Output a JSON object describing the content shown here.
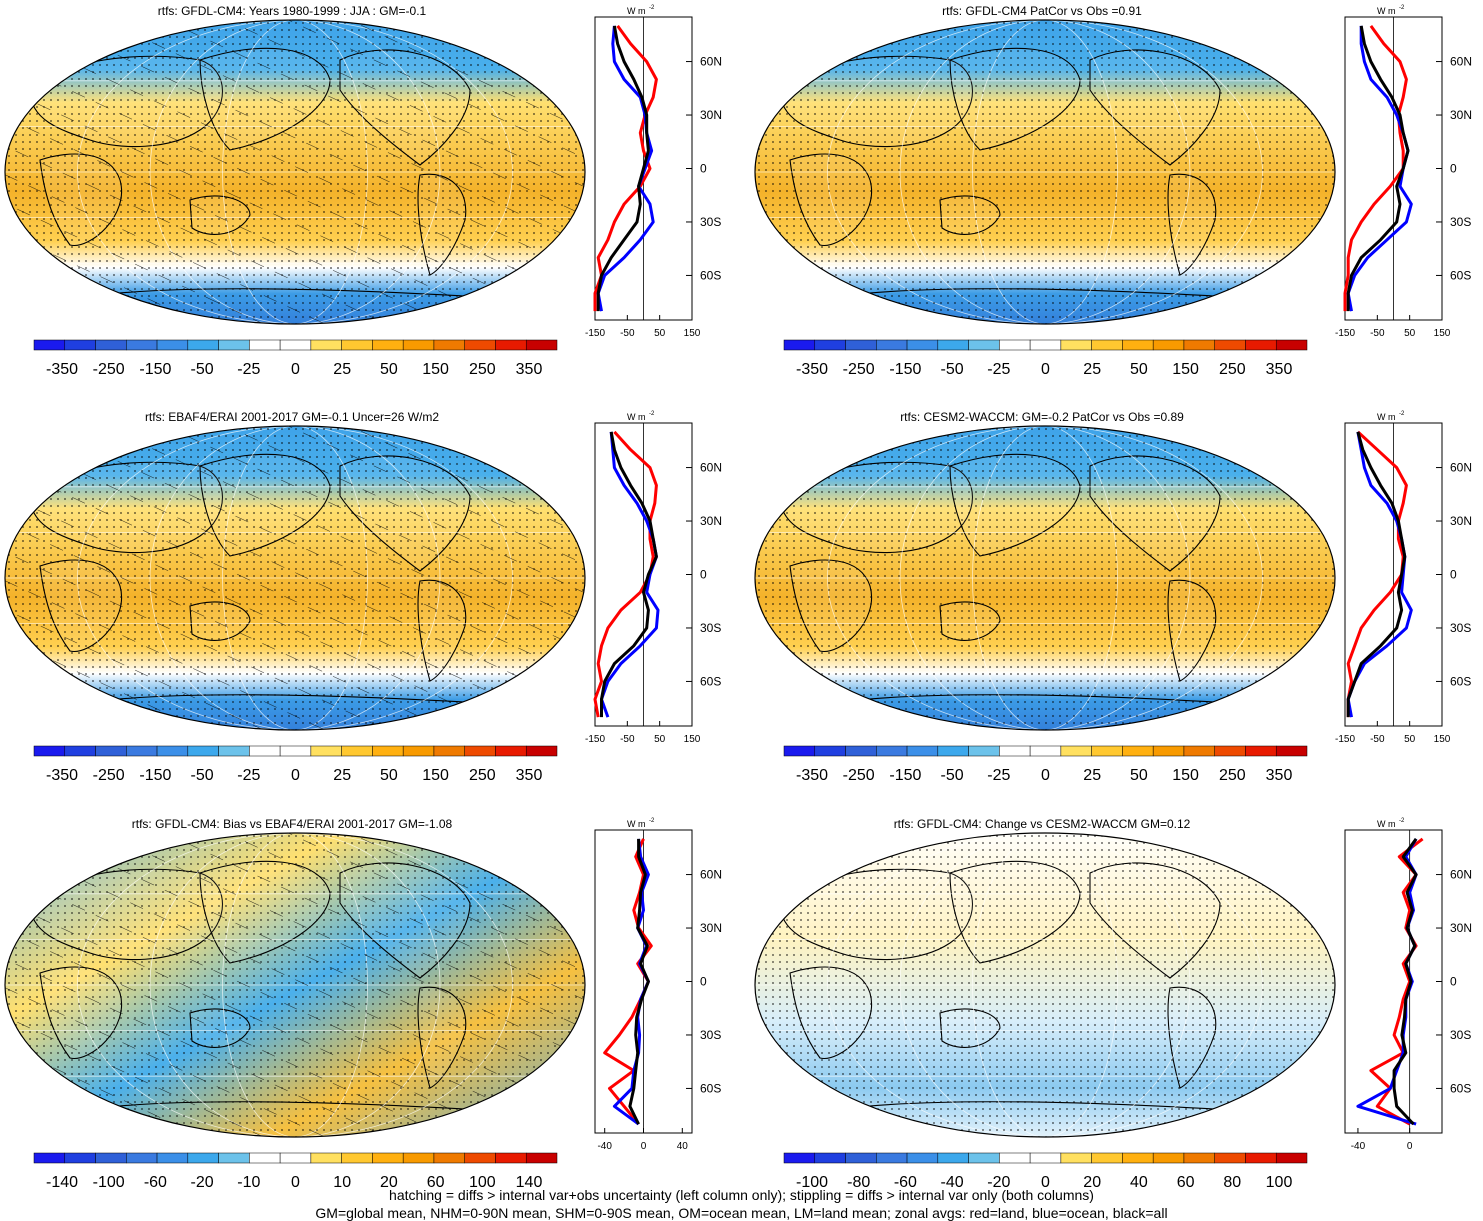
{
  "figure": {
    "footer_lines": [
      "hatching = diffs > internal var+obs uncertainty (left column only); stippling = diffs > internal var only (both columns)",
      "GM=global mean, NHM=0-90N mean, SHM=0-90S mean, OM=ocean mean, LM=land mean; zonal avgs: red=land, blue=ocean, black=all"
    ],
    "colors": {
      "land": "#ff0000",
      "ocean": "#0000ff",
      "all": "#000000",
      "palette": [
        "#1a1aee",
        "#1f3fe0",
        "#2f60d8",
        "#3a7ae0",
        "#3b8fe8",
        "#3ca8ec",
        "#6cc2ea",
        "#ffffff",
        "#ffffff",
        "#ffe060",
        "#ffc830",
        "#ffb010",
        "#f89a00",
        "#ef7a00",
        "#ee4a00",
        "#e81a00",
        "#c80000"
      ]
    }
  },
  "panels": [
    {
      "title": "rtfs: GFDL-CM4: Years 1980-1999 : JJA : GM=-0.1",
      "colorbar_labels": [
        "-350",
        "-250",
        "-150",
        "-50",
        "-25",
        "0",
        "25",
        "50",
        "150",
        "250",
        "350"
      ],
      "zonal": {
        "units": "W m",
        "superscript": "-2",
        "x_ticks": [
          "-150",
          "-50",
          "50",
          "150"
        ],
        "lat_labels": [
          "60N",
          "30N",
          "0",
          "30S",
          "60S"
        ]
      }
    },
    {
      "title": "rtfs: GFDL-CM4 PatCor vs Obs =0.91",
      "colorbar_labels": [
        "-350",
        "-250",
        "-150",
        "-50",
        "-25",
        "0",
        "25",
        "50",
        "150",
        "250",
        "350"
      ],
      "zonal": {
        "units": "W m",
        "superscript": "-2",
        "x_ticks": [
          "-150",
          "-50",
          "50",
          "150"
        ],
        "lat_labels": [
          "60N",
          "30N",
          "0",
          "30S",
          "60S"
        ]
      }
    },
    {
      "title": "rtfs: EBAF4/ERAI 2001-2017 GM=-0.1 Uncer=26 W/m2",
      "colorbar_labels": [
        "-350",
        "-250",
        "-150",
        "-50",
        "-25",
        "0",
        "25",
        "50",
        "150",
        "250",
        "350"
      ],
      "zonal": {
        "units": "W m",
        "superscript": "-2",
        "x_ticks": [
          "-150",
          "-50",
          "50",
          "150"
        ],
        "lat_labels": [
          "60N",
          "30N",
          "0",
          "30S",
          "60S"
        ]
      }
    },
    {
      "title": "rtfs: CESM2-WACCM: GM=-0.2 PatCor vs Obs =0.89",
      "colorbar_labels": [
        "-350",
        "-250",
        "-150",
        "-50",
        "-25",
        "0",
        "25",
        "50",
        "150",
        "250",
        "350"
      ],
      "zonal": {
        "units": "W m",
        "superscript": "-2",
        "x_ticks": [
          "-150",
          "-50",
          "50",
          "150"
        ],
        "lat_labels": [
          "60N",
          "30N",
          "0",
          "30S",
          "60S"
        ]
      }
    },
    {
      "title": "rtfs: GFDL-CM4: Bias vs EBAF4/ERAI 2001-2017 GM=-1.08",
      "colorbar_labels": [
        "-140",
        "-100",
        "-60",
        "-20",
        "-10",
        "0",
        "10",
        "20",
        "60",
        "100",
        "140"
      ],
      "zonal": {
        "units": "W m",
        "superscript": "-2",
        "x_ticks": [
          "-40",
          "0",
          "40"
        ],
        "lat_labels": [
          "60N",
          "30N",
          "0",
          "30S",
          "60S"
        ]
      }
    },
    {
      "title": "rtfs: GFDL-CM4: Change vs CESM2-WACCM GM=0.12",
      "colorbar_labels": [
        "-100",
        "-80",
        "-60",
        "-40",
        "-20",
        "0",
        "20",
        "40",
        "60",
        "80",
        "100"
      ],
      "zonal": {
        "units": "W m",
        "superscript": "-2",
        "x_ticks": [
          "-40",
          "0"
        ],
        "lat_labels": [
          "60N",
          "30N",
          "0",
          "30S",
          "60S"
        ]
      }
    }
  ],
  "chart_data": [
    {
      "type": "line",
      "title": "rtfs: GFDL-CM4: Years 1980-1999 : JJA : GM=-0.1",
      "xlabel": "W m-2",
      "xlim": [
        -150,
        150
      ],
      "y": [
        80,
        70,
        60,
        50,
        40,
        30,
        20,
        10,
        0,
        -10,
        -20,
        -30,
        -40,
        -50,
        -60,
        -70,
        -80
      ],
      "series": [
        {
          "name": "land",
          "values": [
            -80,
            -40,
            10,
            40,
            30,
            5,
            -10,
            0,
            20,
            -10,
            -60,
            -90,
            -110,
            -140,
            -130,
            -150,
            -150
          ]
        },
        {
          "name": "ocean",
          "values": [
            -90,
            -95,
            -90,
            -60,
            -10,
            5,
            10,
            25,
            5,
            -15,
            20,
            30,
            -10,
            -60,
            -120,
            -140,
            -130
          ]
        },
        {
          "name": "all",
          "values": [
            -90,
            -80,
            -60,
            -30,
            -5,
            10,
            10,
            15,
            0,
            -15,
            -10,
            -20,
            -60,
            -100,
            -130,
            -140,
            -140
          ]
        }
      ]
    },
    {
      "type": "line",
      "title": "rtfs: GFDL-CM4 PatCor vs Obs =0.91",
      "xlabel": "W m-2",
      "xlim": [
        -150,
        150
      ],
      "y": [
        80,
        70,
        60,
        50,
        40,
        30,
        20,
        10,
        0,
        -10,
        -20,
        -30,
        -40,
        -50,
        -60,
        -70,
        -80
      ],
      "series": [
        {
          "name": "land",
          "values": [
            -70,
            -30,
            20,
            40,
            30,
            15,
            20,
            30,
            30,
            -10,
            -60,
            -100,
            -130,
            -140,
            -140,
            -150,
            -150
          ]
        },
        {
          "name": "ocean",
          "values": [
            -100,
            -100,
            -90,
            -70,
            -20,
            10,
            30,
            45,
            30,
            20,
            55,
            40,
            -20,
            -80,
            -120,
            -140,
            -130
          ]
        },
        {
          "name": "all",
          "values": [
            -100,
            -90,
            -70,
            -40,
            -5,
            20,
            30,
            45,
            30,
            10,
            20,
            10,
            -40,
            -100,
            -130,
            -140,
            -140
          ]
        }
      ]
    },
    {
      "type": "line",
      "title": "rtfs: EBAF4/ERAI 2001-2017 GM=-0.1 Uncer=26 W/m2",
      "xlabel": "W m-2",
      "xlim": [
        -150,
        150
      ],
      "y": [
        80,
        70,
        60,
        50,
        40,
        30,
        20,
        10,
        0,
        -10,
        -20,
        -30,
        -40,
        -50,
        -60,
        -70,
        -80
      ],
      "series": [
        {
          "name": "land",
          "values": [
            -90,
            -40,
            20,
            40,
            35,
            20,
            20,
            30,
            20,
            -10,
            -70,
            -110,
            -130,
            -140,
            -130,
            -150,
            -140
          ]
        },
        {
          "name": "ocean",
          "values": [
            -100,
            -95,
            -90,
            -60,
            -20,
            10,
            30,
            40,
            20,
            10,
            45,
            40,
            -10,
            -70,
            -110,
            -130,
            -110
          ]
        },
        {
          "name": "all",
          "values": [
            -100,
            -90,
            -70,
            -40,
            -5,
            20,
            30,
            40,
            15,
            0,
            15,
            10,
            -30,
            -90,
            -120,
            -130,
            -130
          ]
        }
      ]
    },
    {
      "type": "line",
      "title": "rtfs: CESM2-WACCM: GM=-0.2 PatCor vs Obs =0.89",
      "xlabel": "W m-2",
      "xlim": [
        -150,
        150
      ],
      "y": [
        80,
        70,
        60,
        50,
        40,
        30,
        20,
        10,
        0,
        -10,
        -20,
        -30,
        -40,
        -50,
        -60,
        -70,
        -80
      ],
      "series": [
        {
          "name": "land",
          "values": [
            -110,
            -50,
            10,
            40,
            30,
            15,
            15,
            30,
            25,
            -10,
            -60,
            -100,
            -120,
            -140,
            -130,
            -140,
            -140
          ]
        },
        {
          "name": "ocean",
          "values": [
            -110,
            -100,
            -90,
            -70,
            -20,
            10,
            25,
            35,
            30,
            25,
            55,
            40,
            -20,
            -90,
            -120,
            -140,
            -130
          ]
        },
        {
          "name": "all",
          "values": [
            -110,
            -95,
            -70,
            -40,
            -5,
            15,
            25,
            35,
            25,
            15,
            25,
            10,
            -40,
            -100,
            -120,
            -140,
            -140
          ]
        }
      ]
    },
    {
      "type": "line",
      "title": "rtfs: GFDL-CM4: Bias vs EBAF4/ERAI 2001-2017 GM=-1.08",
      "xlabel": "W m-2",
      "xlim": [
        -50,
        50
      ],
      "y": [
        80,
        70,
        60,
        50,
        40,
        30,
        20,
        10,
        0,
        -10,
        -20,
        -30,
        -40,
        -50,
        -60,
        -70,
        -80
      ],
      "series": [
        {
          "name": "land",
          "values": [
            0,
            -8,
            0,
            -4,
            -10,
            -5,
            8,
            -6,
            5,
            -3,
            -12,
            -25,
            -40,
            -10,
            -35,
            -20,
            -5
          ]
        },
        {
          "name": "ocean",
          "values": [
            -5,
            -3,
            5,
            -2,
            0,
            -6,
            3,
            -4,
            5,
            -3,
            -6,
            -4,
            -5,
            -10,
            -12,
            -30,
            -5
          ]
        },
        {
          "name": "all",
          "values": [
            -5,
            -5,
            2,
            -3,
            -4,
            -6,
            4,
            -3,
            5,
            -2,
            -7,
            -8,
            -6,
            -8,
            -10,
            -14,
            -5
          ]
        }
      ]
    },
    {
      "type": "line",
      "title": "rtfs: GFDL-CM4: Change vs CESM2-WACCM GM=0.12",
      "xlabel": "W m-2",
      "xlim": [
        -50,
        25
      ],
      "y": [
        80,
        70,
        60,
        50,
        40,
        30,
        20,
        10,
        0,
        -10,
        -20,
        -30,
        -40,
        -50,
        -60,
        -70,
        -80
      ],
      "series": [
        {
          "name": "land",
          "values": [
            10,
            -8,
            5,
            -5,
            0,
            -3,
            5,
            -5,
            0,
            -5,
            -8,
            -12,
            -5,
            -30,
            -15,
            -25,
            0
          ]
        },
        {
          "name": "ocean",
          "values": [
            5,
            -3,
            5,
            0,
            3,
            -2,
            4,
            -3,
            2,
            -3,
            -3,
            -5,
            -5,
            -10,
            -15,
            -40,
            5
          ]
        },
        {
          "name": "all",
          "values": [
            5,
            -5,
            5,
            -2,
            2,
            -2,
            4,
            -3,
            1,
            -3,
            -4,
            -6,
            -3,
            -12,
            -12,
            -10,
            3
          ]
        }
      ]
    }
  ]
}
